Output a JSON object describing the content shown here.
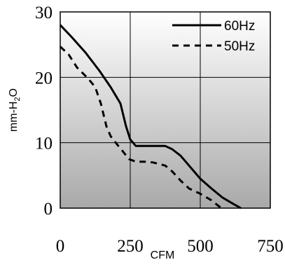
{
  "chart_data": {
    "type": "line",
    "title": "",
    "xlabel": "CFM",
    "ylabel": "mm-H",
    "ylabel_sub": "2",
    "ylabel_suffix": "O",
    "xlim": [
      0,
      750
    ],
    "ylim": [
      0,
      30
    ],
    "xticks": [
      0,
      250,
      500,
      750
    ],
    "yticks": [
      0,
      10,
      20,
      30
    ],
    "xtick_labels": [
      "0",
      "250",
      "500",
      "750"
    ],
    "ytick_labels": [
      "0",
      "10",
      "20",
      "30"
    ],
    "grid": true,
    "background": "vertical gradient white to gray",
    "legend_position": "top-right",
    "series": [
      {
        "name": "60Hz",
        "style": "solid",
        "color": "#000000",
        "points": [
          [
            0,
            28.0
          ],
          [
            40,
            26.2
          ],
          [
            90,
            23.8
          ],
          [
            140,
            21.0
          ],
          [
            180,
            18.5
          ],
          [
            215,
            16.0
          ],
          [
            235,
            12.5
          ],
          [
            250,
            10.5
          ],
          [
            270,
            9.5
          ],
          [
            300,
            9.5
          ],
          [
            330,
            9.5
          ],
          [
            375,
            9.5
          ],
          [
            400,
            9.0
          ],
          [
            430,
            8.0
          ],
          [
            470,
            6.0
          ],
          [
            500,
            4.5
          ],
          [
            540,
            3.0
          ],
          [
            580,
            1.6
          ],
          [
            620,
            0.6
          ],
          [
            645,
            0.0
          ]
        ]
      },
      {
        "name": "50Hz",
        "style": "dashed",
        "color": "#000000",
        "points": [
          [
            0,
            24.7
          ],
          [
            30,
            23.5
          ],
          [
            60,
            21.5
          ],
          [
            100,
            19.8
          ],
          [
            125,
            18.5
          ],
          [
            145,
            16.0
          ],
          [
            165,
            12.5
          ],
          [
            180,
            11.0
          ],
          [
            200,
            9.9
          ],
          [
            225,
            8.6
          ],
          [
            245,
            7.5
          ],
          [
            270,
            7.1
          ],
          [
            300,
            7.1
          ],
          [
            330,
            7.0
          ],
          [
            375,
            6.5
          ],
          [
            400,
            5.6
          ],
          [
            430,
            4.2
          ],
          [
            460,
            3.0
          ],
          [
            500,
            2.2
          ],
          [
            540,
            1.2
          ],
          [
            575,
            0.0
          ]
        ]
      }
    ]
  }
}
